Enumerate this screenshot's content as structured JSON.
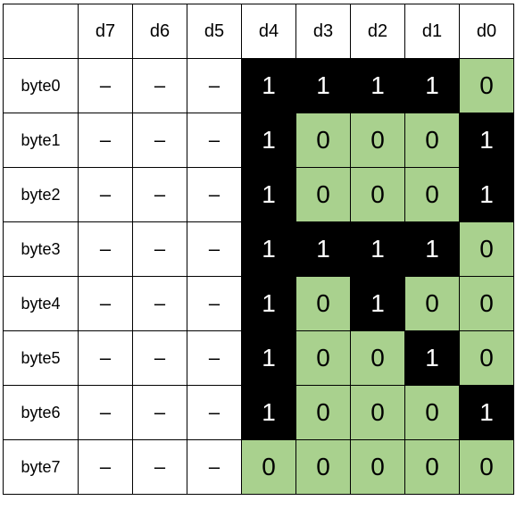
{
  "table": {
    "columns": [
      "d7",
      "d6",
      "d5",
      "d4",
      "d3",
      "d2",
      "d1",
      "d0"
    ],
    "rows": [
      {
        "label": "byte0",
        "cells": [
          "–",
          "–",
          "–",
          1,
          1,
          1,
          1,
          0
        ]
      },
      {
        "label": "byte1",
        "cells": [
          "–",
          "–",
          "–",
          1,
          0,
          0,
          0,
          1
        ]
      },
      {
        "label": "byte2",
        "cells": [
          "–",
          "–",
          "–",
          1,
          0,
          0,
          0,
          1
        ]
      },
      {
        "label": "byte3",
        "cells": [
          "–",
          "–",
          "–",
          1,
          1,
          1,
          1,
          0
        ]
      },
      {
        "label": "byte4",
        "cells": [
          "–",
          "–",
          "–",
          1,
          0,
          1,
          0,
          0
        ]
      },
      {
        "label": "byte5",
        "cells": [
          "–",
          "–",
          "–",
          1,
          0,
          0,
          1,
          0
        ]
      },
      {
        "label": "byte6",
        "cells": [
          "–",
          "–",
          "–",
          1,
          0,
          0,
          0,
          1
        ]
      },
      {
        "label": "byte7",
        "cells": [
          "–",
          "–",
          "–",
          0,
          0,
          0,
          0,
          0
        ]
      }
    ],
    "bit_colors": {
      "one_fill": "#000000",
      "one_text": "#ffffff",
      "zero_fill": "#a9d18e",
      "zero_text": "#000000"
    }
  }
}
